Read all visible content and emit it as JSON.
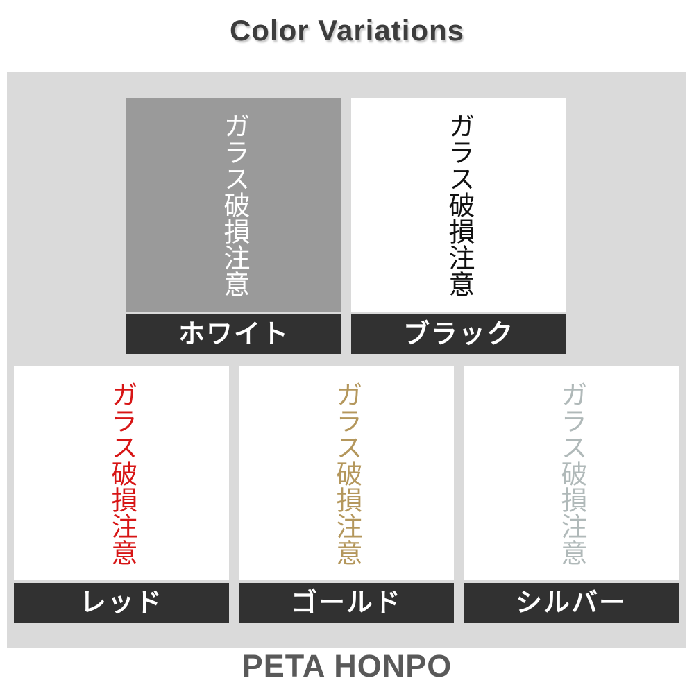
{
  "title": "Color Variations",
  "footer": "PETA HONPO",
  "sample_text": "ガラス破損注意",
  "colors": {
    "page_bg": "#ffffff",
    "panel_bg": "#dadada",
    "label_bar_bg": "#313131",
    "label_text": "#ffffff",
    "title_text": "#3d3d3d",
    "footer_text": "#595959"
  },
  "variations": [
    {
      "name": "white",
      "label": "ホワイト",
      "text_color": "#ffffff",
      "swatch_bg": "#9a9a9a"
    },
    {
      "name": "black",
      "label": "ブラック",
      "text_color": "#111111",
      "swatch_bg": "#ffffff"
    },
    {
      "name": "red",
      "label": "レッド",
      "text_color": "#d71515",
      "swatch_bg": "#ffffff"
    },
    {
      "name": "gold",
      "label": "ゴールド",
      "text_color": "#b4975c",
      "swatch_bg": "#ffffff"
    },
    {
      "name": "silver",
      "label": "シルバー",
      "text_color": "#b0b9b9",
      "swatch_bg": "#ffffff"
    }
  ]
}
